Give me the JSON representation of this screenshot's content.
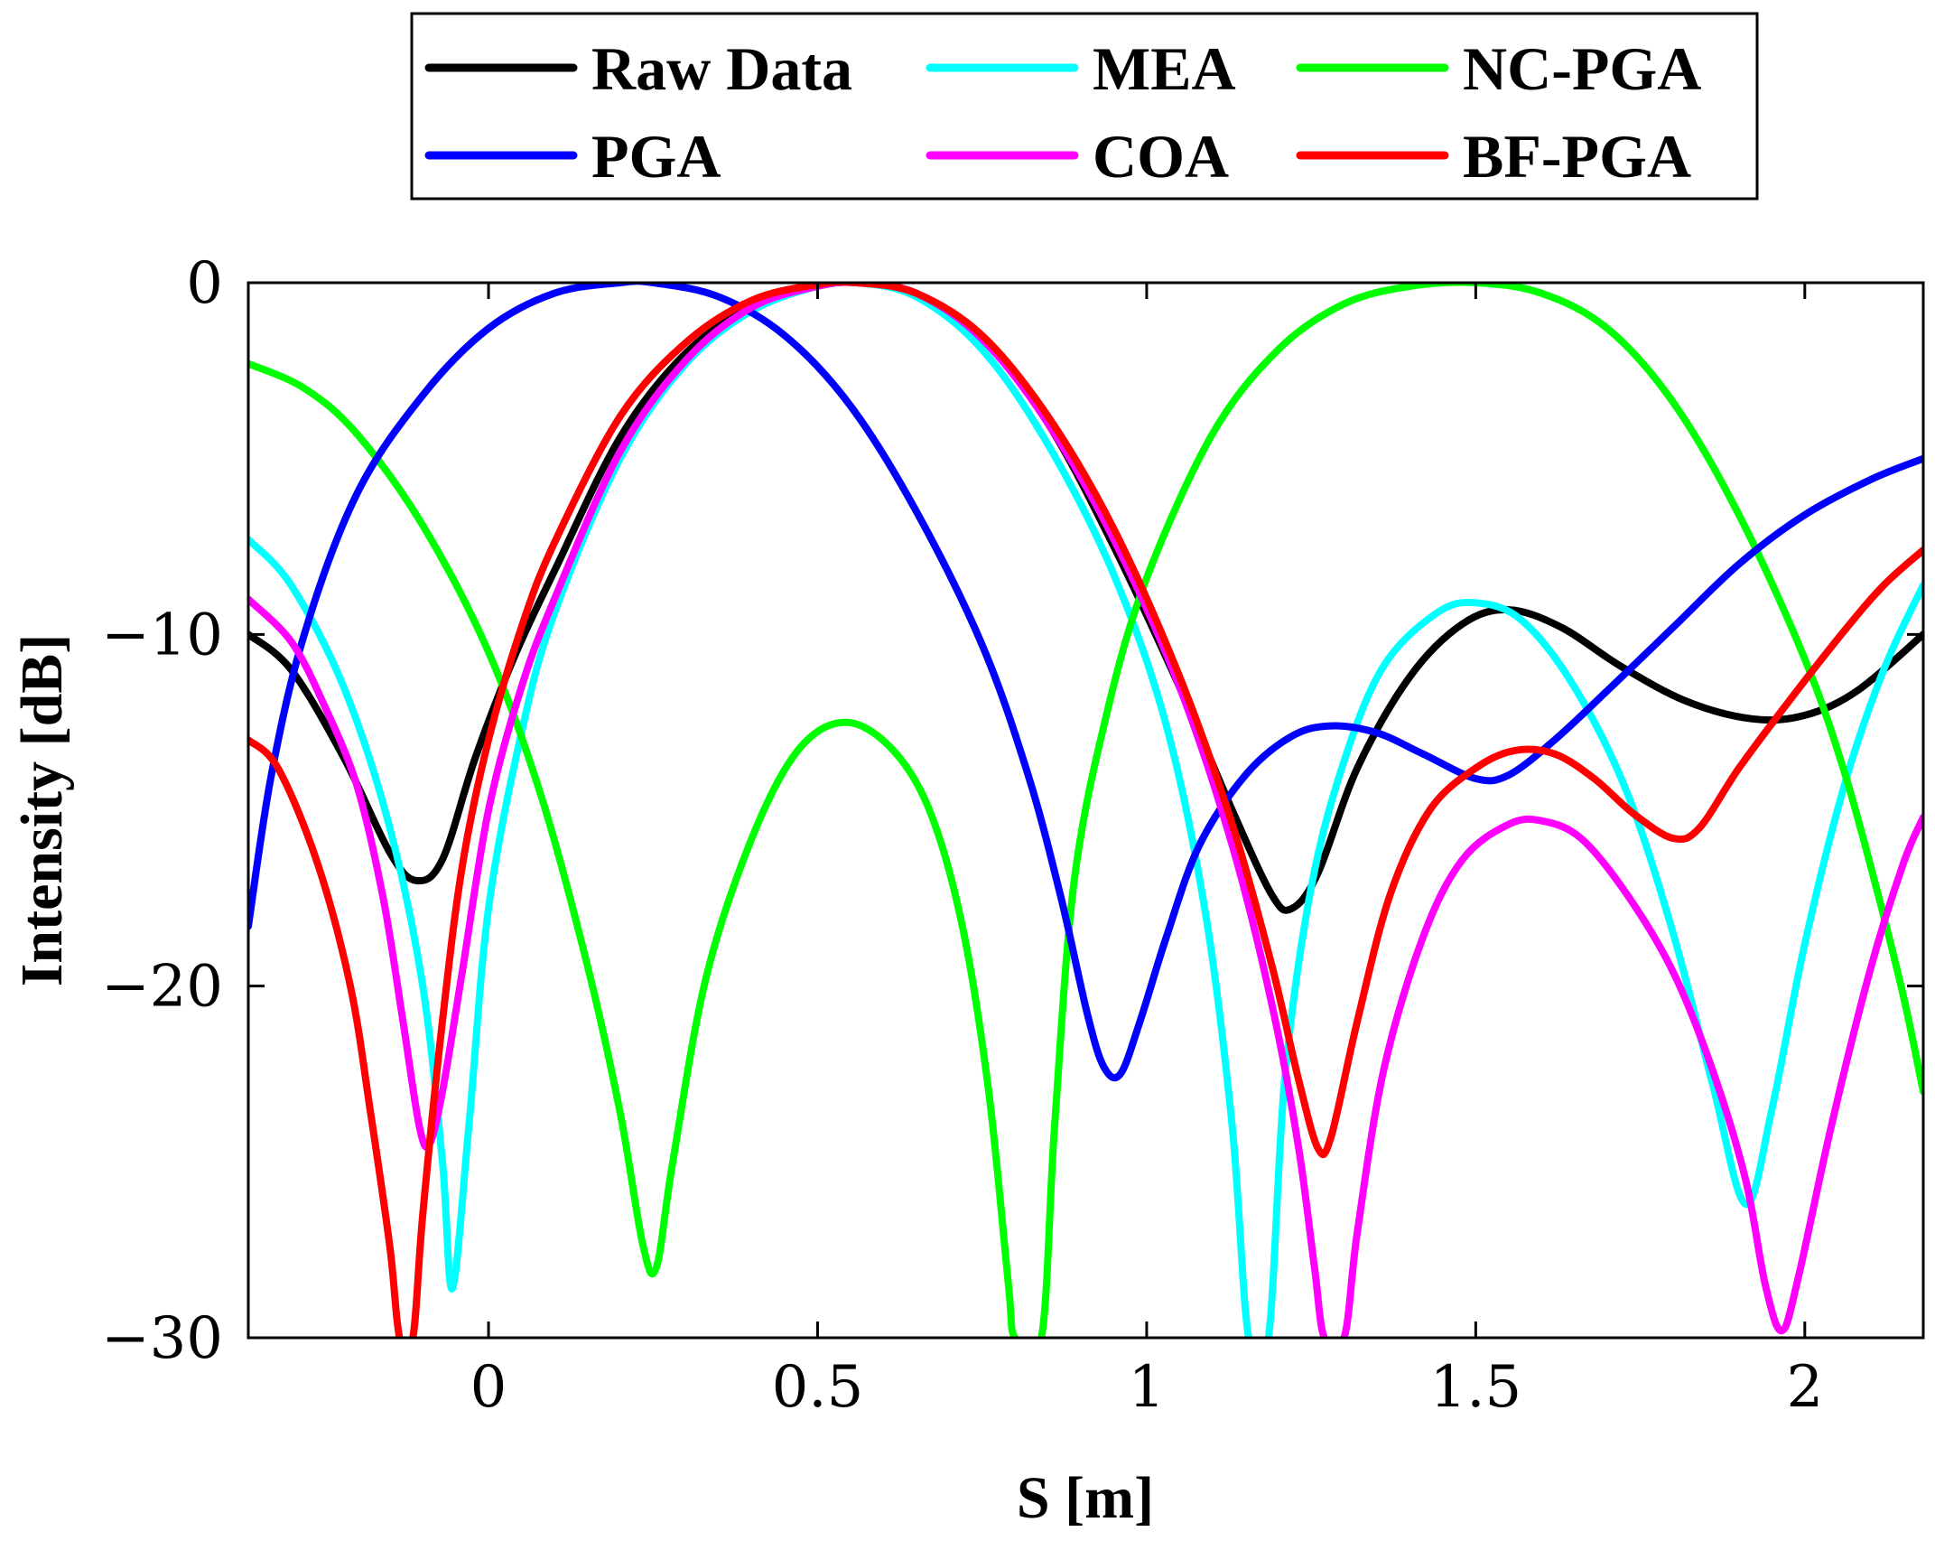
{
  "chart_data": {
    "type": "line",
    "title": "",
    "xlabel": "S [m]",
    "ylabel": "Intensity [dB]",
    "xlim": [
      -0.365,
      2.18
    ],
    "ylim": [
      -30,
      0
    ],
    "xticks": [
      0,
      0.5,
      1,
      1.5,
      2
    ],
    "xtick_labels": [
      "0",
      "0.5",
      "1",
      "1.5",
      "2"
    ],
    "yticks": [
      0,
      -10,
      -20,
      -30
    ],
    "ytick_labels": [
      "0",
      "−10",
      "−20",
      "−30"
    ],
    "grid": false,
    "legend_position": "top-outside",
    "series": [
      {
        "name": "Raw Data",
        "color": "#000000",
        "points": [
          [
            -0.365,
            -10.0
          ],
          [
            -0.3,
            -11.0
          ],
          [
            -0.22,
            -13.5
          ],
          [
            -0.15,
            -16.2
          ],
          [
            -0.11,
            -17.0
          ],
          [
            -0.07,
            -16.4
          ],
          [
            -0.02,
            -13.5
          ],
          [
            0.04,
            -10.6
          ],
          [
            0.1,
            -8.2
          ],
          [
            0.2,
            -4.4
          ],
          [
            0.3,
            -2.0
          ],
          [
            0.4,
            -0.7
          ],
          [
            0.5,
            -0.1
          ],
          [
            0.56,
            0.0
          ],
          [
            0.65,
            -0.3
          ],
          [
            0.75,
            -1.6
          ],
          [
            0.85,
            -4.0
          ],
          [
            0.95,
            -7.5
          ],
          [
            1.05,
            -11.5
          ],
          [
            1.13,
            -15.0
          ],
          [
            1.19,
            -17.4
          ],
          [
            1.22,
            -17.8
          ],
          [
            1.26,
            -16.8
          ],
          [
            1.32,
            -13.8
          ],
          [
            1.4,
            -11.2
          ],
          [
            1.48,
            -9.7
          ],
          [
            1.55,
            -9.3
          ],
          [
            1.63,
            -9.8
          ],
          [
            1.72,
            -10.9
          ],
          [
            1.82,
            -11.9
          ],
          [
            1.92,
            -12.4
          ],
          [
            2.0,
            -12.3
          ],
          [
            2.08,
            -11.6
          ],
          [
            2.18,
            -10.0
          ]
        ]
      },
      {
        "name": "MEA",
        "color": "#00ffff",
        "points": [
          [
            -0.365,
            -7.3
          ],
          [
            -0.3,
            -8.6
          ],
          [
            -0.22,
            -11.5
          ],
          [
            -0.15,
            -15.5
          ],
          [
            -0.1,
            -20.0
          ],
          [
            -0.07,
            -25.0
          ],
          [
            -0.055,
            -28.6
          ],
          [
            -0.03,
            -24.0
          ],
          [
            0.0,
            -17.8
          ],
          [
            0.05,
            -12.8
          ],
          [
            0.1,
            -9.4
          ],
          [
            0.2,
            -5.0
          ],
          [
            0.3,
            -2.3
          ],
          [
            0.4,
            -0.8
          ],
          [
            0.5,
            -0.1
          ],
          [
            0.56,
            0.0
          ],
          [
            0.65,
            -0.4
          ],
          [
            0.75,
            -1.9
          ],
          [
            0.85,
            -4.6
          ],
          [
            0.95,
            -8.3
          ],
          [
            1.03,
            -12.6
          ],
          [
            1.09,
            -18.0
          ],
          [
            1.13,
            -24.0
          ],
          [
            1.155,
            -30.0
          ],
          [
            1.185,
            -30.0
          ],
          [
            1.21,
            -22.6
          ],
          [
            1.25,
            -17.2
          ],
          [
            1.3,
            -13.6
          ],
          [
            1.36,
            -10.9
          ],
          [
            1.44,
            -9.4
          ],
          [
            1.5,
            -9.1
          ],
          [
            1.57,
            -9.6
          ],
          [
            1.65,
            -11.5
          ],
          [
            1.73,
            -14.5
          ],
          [
            1.8,
            -18.5
          ],
          [
            1.86,
            -22.8
          ],
          [
            1.91,
            -26.2
          ],
          [
            1.95,
            -23.5
          ],
          [
            2.0,
            -18.8
          ],
          [
            2.06,
            -14.3
          ],
          [
            2.12,
            -11.0
          ],
          [
            2.18,
            -8.6
          ]
        ]
      },
      {
        "name": "NC-PGA",
        "color": "#00ff00",
        "points": [
          [
            -0.365,
            -2.3
          ],
          [
            -0.28,
            -3.0
          ],
          [
            -0.2,
            -4.3
          ],
          [
            -0.1,
            -6.9
          ],
          [
            0.0,
            -10.5
          ],
          [
            0.08,
            -14.6
          ],
          [
            0.15,
            -19.4
          ],
          [
            0.2,
            -23.6
          ],
          [
            0.235,
            -27.4
          ],
          [
            0.255,
            -28.0
          ],
          [
            0.28,
            -25.0
          ],
          [
            0.33,
            -19.8
          ],
          [
            0.4,
            -15.8
          ],
          [
            0.47,
            -13.3
          ],
          [
            0.54,
            -12.5
          ],
          [
            0.61,
            -13.2
          ],
          [
            0.67,
            -15.0
          ],
          [
            0.72,
            -18.3
          ],
          [
            0.76,
            -23.0
          ],
          [
            0.79,
            -28.5
          ],
          [
            0.8,
            -30.0
          ],
          [
            0.84,
            -30.0
          ],
          [
            0.86,
            -24.0
          ],
          [
            0.89,
            -17.0
          ],
          [
            0.94,
            -12.2
          ],
          [
            1.0,
            -8.4
          ],
          [
            1.1,
            -4.3
          ],
          [
            1.2,
            -1.9
          ],
          [
            1.3,
            -0.6
          ],
          [
            1.4,
            -0.1
          ],
          [
            1.5,
            0.0
          ],
          [
            1.6,
            -0.3
          ],
          [
            1.7,
            -1.3
          ],
          [
            1.8,
            -3.4
          ],
          [
            1.9,
            -6.6
          ],
          [
            2.0,
            -10.7
          ],
          [
            2.06,
            -13.9
          ],
          [
            2.11,
            -17.3
          ],
          [
            2.15,
            -20.3
          ],
          [
            2.18,
            -23.0
          ]
        ]
      },
      {
        "name": "PGA",
        "color": "#0000ff",
        "points": [
          [
            -0.365,
            -18.3
          ],
          [
            -0.33,
            -14.0
          ],
          [
            -0.28,
            -10.0
          ],
          [
            -0.2,
            -6.0
          ],
          [
            -0.1,
            -3.2
          ],
          [
            0.0,
            -1.3
          ],
          [
            0.1,
            -0.3
          ],
          [
            0.2,
            0.0
          ],
          [
            0.25,
            0.0
          ],
          [
            0.35,
            -0.4
          ],
          [
            0.45,
            -1.5
          ],
          [
            0.55,
            -3.5
          ],
          [
            0.65,
            -6.5
          ],
          [
            0.75,
            -10.3
          ],
          [
            0.82,
            -14.0
          ],
          [
            0.87,
            -17.5
          ],
          [
            0.91,
            -20.8
          ],
          [
            0.935,
            -22.3
          ],
          [
            0.96,
            -22.5
          ],
          [
            0.99,
            -21.0
          ],
          [
            1.03,
            -18.6
          ],
          [
            1.08,
            -16.0
          ],
          [
            1.15,
            -14.0
          ],
          [
            1.22,
            -12.9
          ],
          [
            1.28,
            -12.6
          ],
          [
            1.35,
            -12.8
          ],
          [
            1.42,
            -13.4
          ],
          [
            1.5,
            -14.1
          ],
          [
            1.55,
            -14.0
          ],
          [
            1.62,
            -13.0
          ],
          [
            1.7,
            -11.6
          ],
          [
            1.8,
            -9.8
          ],
          [
            1.9,
            -8.0
          ],
          [
            2.0,
            -6.6
          ],
          [
            2.1,
            -5.6
          ],
          [
            2.18,
            -5.0
          ]
        ]
      },
      {
        "name": "COA",
        "color": "#ff00ff",
        "points": [
          [
            -0.365,
            -9.0
          ],
          [
            -0.3,
            -10.2
          ],
          [
            -0.25,
            -12.0
          ],
          [
            -0.2,
            -14.3
          ],
          [
            -0.16,
            -17.5
          ],
          [
            -0.13,
            -21.0
          ],
          [
            -0.105,
            -24.0
          ],
          [
            -0.09,
            -24.5
          ],
          [
            -0.07,
            -23.0
          ],
          [
            -0.04,
            -19.6
          ],
          [
            0.0,
            -15.0
          ],
          [
            0.05,
            -11.5
          ],
          [
            0.1,
            -9.0
          ],
          [
            0.2,
            -4.8
          ],
          [
            0.3,
            -2.2
          ],
          [
            0.4,
            -0.7
          ],
          [
            0.5,
            -0.1
          ],
          [
            0.56,
            0.0
          ],
          [
            0.65,
            -0.3
          ],
          [
            0.75,
            -1.6
          ],
          [
            0.85,
            -4.0
          ],
          [
            0.95,
            -7.3
          ],
          [
            1.05,
            -11.5
          ],
          [
            1.13,
            -16.0
          ],
          [
            1.19,
            -20.5
          ],
          [
            1.23,
            -24.5
          ],
          [
            1.255,
            -28.0
          ],
          [
            1.27,
            -30.0
          ],
          [
            1.3,
            -30.0
          ],
          [
            1.32,
            -27.0
          ],
          [
            1.36,
            -22.4
          ],
          [
            1.42,
            -18.6
          ],
          [
            1.48,
            -16.4
          ],
          [
            1.55,
            -15.4
          ],
          [
            1.6,
            -15.3
          ],
          [
            1.66,
            -15.8
          ],
          [
            1.73,
            -17.4
          ],
          [
            1.8,
            -19.6
          ],
          [
            1.86,
            -22.4
          ],
          [
            1.91,
            -25.5
          ],
          [
            1.94,
            -28.5
          ],
          [
            1.965,
            -29.8
          ],
          [
            1.99,
            -28.3
          ],
          [
            2.04,
            -24.0
          ],
          [
            2.1,
            -19.5
          ],
          [
            2.15,
            -16.5
          ],
          [
            2.18,
            -15.2
          ]
        ]
      },
      {
        "name": "BF-PGA",
        "color": "#ff0000",
        "points": [
          [
            -0.365,
            -13.0
          ],
          [
            -0.32,
            -13.8
          ],
          [
            -0.26,
            -16.5
          ],
          [
            -0.21,
            -20.0
          ],
          [
            -0.18,
            -23.5
          ],
          [
            -0.15,
            -27.4
          ],
          [
            -0.135,
            -30.0
          ],
          [
            -0.115,
            -30.0
          ],
          [
            -0.1,
            -26.5
          ],
          [
            -0.07,
            -21.0
          ],
          [
            -0.04,
            -16.6
          ],
          [
            0.0,
            -13.0
          ],
          [
            0.05,
            -9.8
          ],
          [
            0.1,
            -7.4
          ],
          [
            0.2,
            -3.8
          ],
          [
            0.3,
            -1.7
          ],
          [
            0.4,
            -0.5
          ],
          [
            0.5,
            -0.05
          ],
          [
            0.56,
            0.0
          ],
          [
            0.65,
            -0.3
          ],
          [
            0.75,
            -1.5
          ],
          [
            0.85,
            -3.8
          ],
          [
            0.95,
            -7.0
          ],
          [
            1.05,
            -11.2
          ],
          [
            1.13,
            -15.4
          ],
          [
            1.19,
            -19.4
          ],
          [
            1.23,
            -22.6
          ],
          [
            1.26,
            -24.6
          ],
          [
            1.28,
            -24.3
          ],
          [
            1.32,
            -21.0
          ],
          [
            1.37,
            -17.4
          ],
          [
            1.43,
            -15.0
          ],
          [
            1.5,
            -13.8
          ],
          [
            1.56,
            -13.3
          ],
          [
            1.62,
            -13.4
          ],
          [
            1.68,
            -14.1
          ],
          [
            1.74,
            -15.1
          ],
          [
            1.8,
            -15.8
          ],
          [
            1.84,
            -15.5
          ],
          [
            1.9,
            -13.8
          ],
          [
            1.98,
            -11.8
          ],
          [
            2.06,
            -9.9
          ],
          [
            2.12,
            -8.6
          ],
          [
            2.18,
            -7.6
          ]
        ]
      }
    ],
    "legend": [
      {
        "label": "Raw Data",
        "color": "#000000"
      },
      {
        "label": "MEA",
        "color": "#00ffff"
      },
      {
        "label": "NC-PGA",
        "color": "#00ff00"
      },
      {
        "label": "PGA",
        "color": "#0000ff"
      },
      {
        "label": "COA",
        "color": "#ff00ff"
      },
      {
        "label": "BF-PGA",
        "color": "#ff0000"
      }
    ]
  }
}
